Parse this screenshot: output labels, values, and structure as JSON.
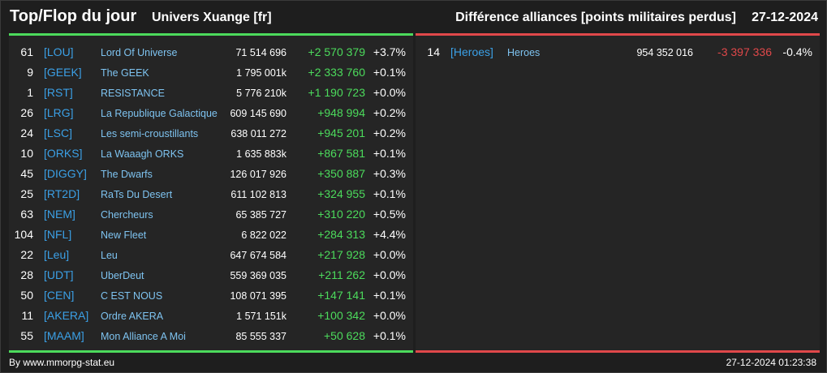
{
  "header": {
    "title": "Top/Flop du jour",
    "universe": "Univers Xuange [fr]",
    "report_title": "Différence alliances [points militaires perdus]",
    "date": "27-12-2024"
  },
  "colors": {
    "positive": "#4cdb5c",
    "negative": "#e0484a",
    "tag": "#3ba0e6",
    "name": "#7ec3f0",
    "background": "#1e1e1e",
    "panel": "#252525"
  },
  "top": [
    {
      "rank": "61",
      "tag": "[LOU]",
      "name": "Lord Of Universe",
      "points": "71 514 696",
      "diff": "+2 570 379",
      "pct": "+3.7%"
    },
    {
      "rank": "9",
      "tag": "[GEEK]",
      "name": "The GEEK",
      "points": "1 795 001k",
      "diff": "+2 333 760",
      "pct": "+0.1%"
    },
    {
      "rank": "1",
      "tag": "[RST]",
      "name": "RESISTANCE",
      "points": "5 776 210k",
      "diff": "+1 190 723",
      "pct": "+0.0%"
    },
    {
      "rank": "26",
      "tag": "[LRG]",
      "name": "La Republique Galactique",
      "points": "609 145 690",
      "diff": "+948 994",
      "pct": "+0.2%"
    },
    {
      "rank": "24",
      "tag": "[LSC]",
      "name": "Les semi-croustillants",
      "points": "638 011 272",
      "diff": "+945 201",
      "pct": "+0.2%"
    },
    {
      "rank": "10",
      "tag": "[ORKS]",
      "name": "La Waaagh ORKS",
      "points": "1 635 883k",
      "diff": "+867 581",
      "pct": "+0.1%"
    },
    {
      "rank": "45",
      "tag": "[DIGGY]",
      "name": "The Dwarfs",
      "points": "126 017 926",
      "diff": "+350 887",
      "pct": "+0.3%"
    },
    {
      "rank": "25",
      "tag": "[RT2D]",
      "name": "RaTs Du Desert",
      "points": "611 102 813",
      "diff": "+324 955",
      "pct": "+0.1%"
    },
    {
      "rank": "63",
      "tag": "[NEM]",
      "name": "Chercheurs",
      "points": "65 385 727",
      "diff": "+310 220",
      "pct": "+0.5%"
    },
    {
      "rank": "104",
      "tag": "[NFL]",
      "name": "New Fleet",
      "points": "6 822 022",
      "diff": "+284 313",
      "pct": "+4.4%"
    },
    {
      "rank": "22",
      "tag": "[Leu]",
      "name": "Leu",
      "points": "647 674 584",
      "diff": "+217 928",
      "pct": "+0.0%"
    },
    {
      "rank": "28",
      "tag": "[UDT]",
      "name": "UberDeut",
      "points": "559 369 035",
      "diff": "+211 262",
      "pct": "+0.0%"
    },
    {
      "rank": "50",
      "tag": "[CEN]",
      "name": "C EST NOUS",
      "points": "108 071 395",
      "diff": "+147 141",
      "pct": "+0.1%"
    },
    {
      "rank": "11",
      "tag": "[AKERA]",
      "name": "Ordre AKERA",
      "points": "1 571 151k",
      "diff": "+100 342",
      "pct": "+0.0%"
    },
    {
      "rank": "55",
      "tag": "[MAAM]",
      "name": "Mon Alliance A Moi",
      "points": "85 555 337",
      "diff": "+50 628",
      "pct": "+0.1%"
    }
  ],
  "flop": [
    {
      "rank": "14",
      "tag": "[Heroes]",
      "name": "Heroes",
      "points": "954 352 016",
      "diff": "-3 397 336",
      "pct": "-0.4%"
    }
  ],
  "footer": {
    "source": "By www.mmorpg-stat.eu",
    "timestamp": "27-12-2024 01:23:38"
  }
}
